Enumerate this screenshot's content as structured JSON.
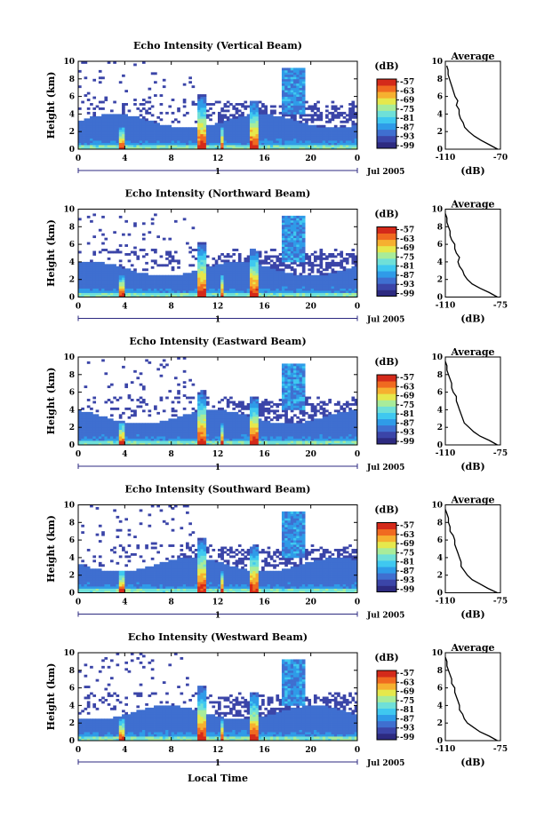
{
  "figure": {
    "date_label": "Jul 2005",
    "xlabel": "Local Time",
    "colorbar_unit": "(dB)",
    "avg_xlabel": "(dB)"
  },
  "colors": {
    "colorbar": [
      "#2d2a80",
      "#3b45a8",
      "#3f6fd0",
      "#2f9be8",
      "#3fc8f0",
      "#6fe0d8",
      "#a8ec9a",
      "#e6e84c",
      "#f6b030",
      "#f06a20",
      "#d42a1a"
    ]
  },
  "chart_data": [
    {
      "type": "heatmap",
      "title": "Echo Intensity (Vertical Beam)",
      "ylabel": "Height (km)",
      "x_ticks": [
        "0",
        "4",
        "8",
        "12",
        "16",
        "20",
        "0"
      ],
      "y_ticks": [
        "0",
        "2",
        "4",
        "6",
        "8",
        "10"
      ],
      "xlim": [
        0,
        24
      ],
      "ylim": [
        0,
        10
      ],
      "day_marker": "1",
      "colorbar_ticks": [
        "-57",
        "-63",
        "-69",
        "-75",
        "-81",
        "-87",
        "-93",
        "-99"
      ],
      "profile": {
        "title": "Average",
        "x_ticks": [
          "-110",
          "-70"
        ],
        "xlim": [
          -110,
          -70
        ],
        "y_ticks": [
          "0",
          "2",
          "4",
          "6",
          "8",
          "10"
        ],
        "heights": [
          0,
          0.5,
          1,
          1.5,
          2,
          2.5,
          3,
          3.5,
          4,
          4.5,
          5,
          5.5,
          6,
          6.5,
          7,
          7.5,
          8,
          8.5,
          9,
          9.5
        ],
        "values": [
          -72,
          -78,
          -84,
          -89,
          -93,
          -96,
          -97,
          -99,
          -100,
          -100,
          -102,
          -101,
          -103,
          -104,
          -105,
          -106,
          -107,
          -108,
          -108,
          -109
        ]
      }
    },
    {
      "type": "heatmap",
      "title": "Echo Intensity (Northward Beam)",
      "ylabel": "Height (km)",
      "x_ticks": [
        "0",
        "4",
        "8",
        "12",
        "16",
        "20",
        "0"
      ],
      "y_ticks": [
        "0",
        "2",
        "4",
        "6",
        "8",
        "10"
      ],
      "xlim": [
        0,
        24
      ],
      "ylim": [
        0,
        10
      ],
      "day_marker": "1",
      "colorbar_ticks": [
        "-57",
        "-63",
        "-69",
        "-75",
        "-81",
        "-87",
        "-93",
        "-99"
      ],
      "profile": {
        "title": "Average",
        "x_ticks": [
          "-110",
          "-75"
        ],
        "xlim": [
          -110,
          -75
        ],
        "y_ticks": [
          "0",
          "2",
          "4",
          "6",
          "8",
          "10"
        ],
        "heights": [
          0,
          0.5,
          1,
          1.5,
          2,
          2.5,
          3,
          3.5,
          4,
          4.5,
          5,
          5.5,
          6,
          6.5,
          7,
          7.5,
          8,
          8.5,
          9,
          9.5
        ],
        "values": [
          -77,
          -82,
          -88,
          -93,
          -96,
          -98,
          -99,
          -101,
          -102,
          -101,
          -103,
          -104,
          -104,
          -106,
          -107,
          -107,
          -108,
          -109,
          -109,
          -110
        ]
      }
    },
    {
      "type": "heatmap",
      "title": "Echo Intensity (Eastward Beam)",
      "ylabel": "Height (km)",
      "x_ticks": [
        "0",
        "4",
        "8",
        "12",
        "16",
        "20",
        "0"
      ],
      "y_ticks": [
        "0",
        "2",
        "4",
        "6",
        "8",
        "10"
      ],
      "xlim": [
        0,
        24
      ],
      "ylim": [
        0,
        10
      ],
      "day_marker": "1",
      "colorbar_ticks": [
        "-57",
        "-63",
        "-69",
        "-75",
        "-81",
        "-87",
        "-93",
        "-99"
      ],
      "profile": {
        "title": "Average",
        "x_ticks": [
          "-110",
          "-75"
        ],
        "xlim": [
          -110,
          -75
        ],
        "y_ticks": [
          "0",
          "2",
          "4",
          "6",
          "8",
          "10"
        ],
        "heights": [
          0,
          0.5,
          1,
          1.5,
          2,
          2.5,
          3,
          3.5,
          4,
          4.5,
          5,
          5.5,
          6,
          6.5,
          7,
          7.5,
          8,
          8.5,
          9,
          9.5
        ],
        "values": [
          -77,
          -82,
          -88,
          -92,
          -95,
          -98,
          -99,
          -100,
          -101,
          -102,
          -103,
          -103,
          -105,
          -106,
          -106,
          -107,
          -108,
          -109,
          -109,
          -110
        ]
      }
    },
    {
      "type": "heatmap",
      "title": "Echo Intensity (Southward Beam)",
      "ylabel": "Height (km)",
      "x_ticks": [
        "0",
        "4",
        "8",
        "12",
        "16",
        "20",
        "0"
      ],
      "y_ticks": [
        "0",
        "2",
        "4",
        "6",
        "8",
        "10"
      ],
      "xlim": [
        0,
        24
      ],
      "ylim": [
        0,
        10
      ],
      "day_marker": "1",
      "colorbar_ticks": [
        "-57",
        "-63",
        "-69",
        "-75",
        "-81",
        "-87",
        "-93",
        "-99"
      ],
      "profile": {
        "title": "Average",
        "x_ticks": [
          "-110",
          "-75"
        ],
        "xlim": [
          -110,
          -75
        ],
        "y_ticks": [
          "0",
          "2",
          "4",
          "6",
          "8",
          "10"
        ],
        "heights": [
          0,
          0.5,
          1,
          1.5,
          2,
          2.5,
          3,
          3.5,
          4,
          4.5,
          5,
          5.5,
          6,
          6.5,
          7,
          7.5,
          8,
          8.5,
          9,
          9.5
        ],
        "values": [
          -77,
          -83,
          -88,
          -93,
          -96,
          -98,
          -100,
          -100,
          -101,
          -102,
          -103,
          -104,
          -104,
          -105,
          -107,
          -107,
          -108,
          -108,
          -109,
          -110
        ]
      }
    },
    {
      "type": "heatmap",
      "title": "Echo Intensity (Westward Beam)",
      "ylabel": "Height (km)",
      "x_ticks": [
        "0",
        "4",
        "8",
        "12",
        "16",
        "20",
        "0"
      ],
      "y_ticks": [
        "0",
        "2",
        "4",
        "6",
        "8",
        "10"
      ],
      "xlim": [
        0,
        24
      ],
      "ylim": [
        0,
        10
      ],
      "day_marker": "1",
      "colorbar_ticks": [
        "-57",
        "-63",
        "-69",
        "-75",
        "-81",
        "-87",
        "-93",
        "-99"
      ],
      "profile": {
        "title": "Average",
        "x_ticks": [
          "-110",
          "-75"
        ],
        "xlim": [
          -110,
          -75
        ],
        "y_ticks": [
          "0",
          "2",
          "4",
          "6",
          "8",
          "10"
        ],
        "heights": [
          0,
          0.5,
          1,
          1.5,
          2,
          2.5,
          3,
          3.5,
          4,
          4.5,
          5,
          5.5,
          6,
          6.5,
          7,
          7.5,
          8,
          8.5,
          9,
          9.5
        ],
        "values": [
          -77,
          -82,
          -88,
          -92,
          -96,
          -98,
          -99,
          -101,
          -101,
          -102,
          -103,
          -104,
          -104,
          -106,
          -106,
          -107,
          -108,
          -109,
          -109,
          -110
        ]
      }
    }
  ]
}
